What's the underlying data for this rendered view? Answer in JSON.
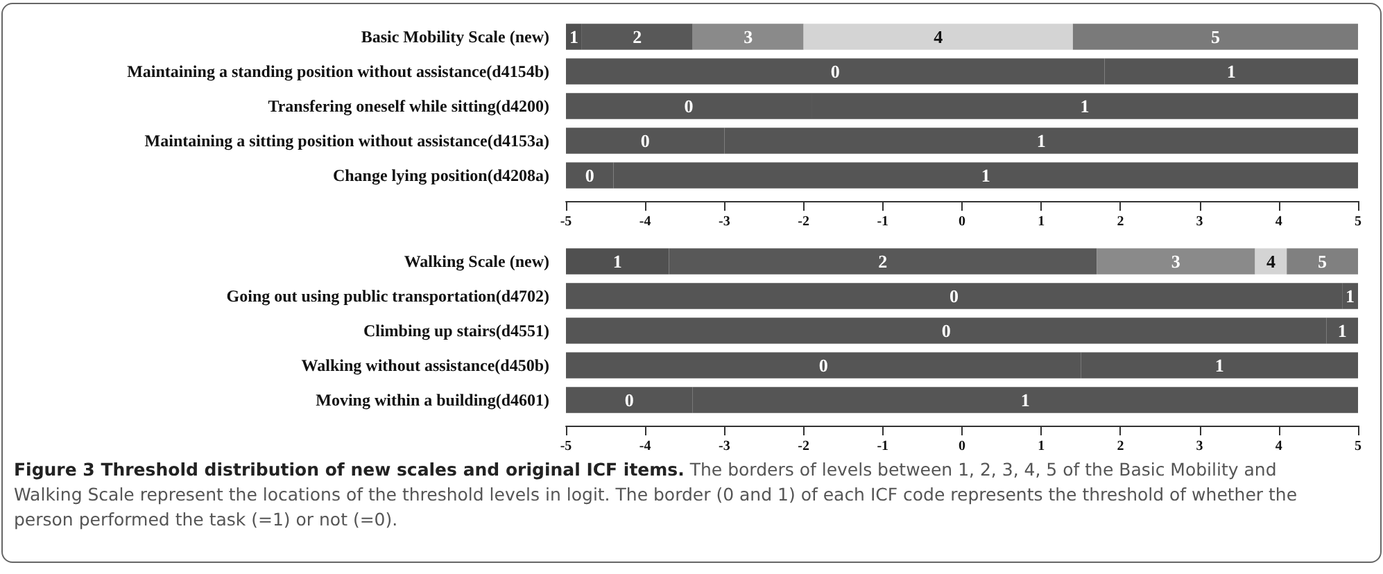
{
  "chart_data": [
    {
      "type": "bar",
      "orientation": "horizontal",
      "categories": [
        "Basic Mobility Scale (new)",
        "Maintaining a standing position without assistance(d4154b)",
        "Transfering oneself while sitting(d4200)",
        "Maintaining a sitting position without assistance(d4153a)",
        "Change lying position(d4208a)"
      ],
      "series": [
        {
          "base": [
            -5,
            -5,
            -5,
            -5,
            -5
          ],
          "values": [
            0.2,
            6.8,
            3.1,
            2.0,
            0.6
          ],
          "colors": [
            "#505050",
            "#555555",
            "#555555",
            "#555555",
            "#555555"
          ]
        },
        {
          "base": [
            -4.8,
            1.8,
            -1.9,
            -3.0,
            -4.4
          ],
          "values": [
            1.4,
            3.2,
            6.9,
            8.0,
            9.4
          ],
          "colors": [
            "#585858",
            "#555555",
            "#555555",
            "#555555",
            "#555555"
          ]
        },
        {
          "base": [
            -3.4,
            null,
            null,
            null,
            null
          ],
          "values": [
            1.4,
            null,
            null,
            null,
            null
          ],
          "colors": [
            "#8a8a8a",
            null,
            null,
            null,
            null
          ]
        },
        {
          "base": [
            -2.0,
            null,
            null,
            null,
            null
          ],
          "values": [
            3.4,
            null,
            null,
            null,
            null
          ],
          "colors": [
            "#d4d4d4",
            null,
            null,
            null,
            null
          ]
        },
        {
          "base": [
            1.4,
            null,
            null,
            null,
            null
          ],
          "values": [
            3.6,
            null,
            null,
            null,
            null
          ],
          "colors": [
            "#7a7a7a",
            null,
            null,
            null,
            null
          ]
        }
      ],
      "xlim": [
        -5,
        5
      ],
      "xticks": [
        -5,
        -4,
        -3,
        -2,
        -1,
        0,
        1,
        2,
        3,
        4,
        5
      ],
      "annotations": [
        {
          "text": "1",
          "x": -4.9,
          "y": "Basic Mobility Scale (new)"
        },
        {
          "text": "2",
          "x": -4.1,
          "y": "Basic Mobility Scale (new)"
        },
        {
          "text": "3",
          "x": -2.7,
          "y": "Basic Mobility Scale (new)"
        },
        {
          "text": "4",
          "x": -0.3,
          "y": "Basic Mobility Scale (new)"
        },
        {
          "text": "5",
          "x": 3.2,
          "y": "Basic Mobility Scale (new)"
        },
        {
          "text": "0",
          "x": -1.6,
          "y": "Maintaining a standing position without assistance(d4154b)"
        },
        {
          "text": "1",
          "x": 3.4,
          "y": "Maintaining a standing position without assistance(d4154b)"
        },
        {
          "text": "0",
          "x": -3.45,
          "y": "Transfering oneself while sitting(d4200)"
        },
        {
          "text": "1",
          "x": 1.55,
          "y": "Transfering oneself while sitting(d4200)"
        },
        {
          "text": "0",
          "x": -4.0,
          "y": "Maintaining a sitting position without assistance(d4153a)"
        },
        {
          "text": "1",
          "x": 1.0,
          "y": "Maintaining a sitting position without assistance(d4153a)"
        },
        {
          "text": "0",
          "x": -4.7,
          "y": "Change lying position(d4208a)"
        },
        {
          "text": "1",
          "x": 0.3,
          "y": "Change lying position(d4208a)"
        }
      ]
    },
    {
      "type": "bar",
      "orientation": "horizontal",
      "categories": [
        "Walking Scale (new)",
        "Going out using public transportation(d4702)",
        "Climbing up stairs(d4551)",
        "Walking without assistance(d450b)",
        "Moving within a building(d4601)"
      ],
      "series": [
        {
          "base": [
            -5,
            -5,
            -5,
            -5,
            -5
          ],
          "values": [
            1.3,
            9.8,
            9.6,
            6.5,
            1.6
          ],
          "colors": [
            "#505050",
            "#555555",
            "#555555",
            "#555555",
            "#555555"
          ]
        },
        {
          "base": [
            -3.7,
            4.8,
            4.6,
            1.5,
            -3.4
          ],
          "values": [
            5.4,
            0.2,
            0.4,
            3.5,
            8.4
          ],
          "colors": [
            "#585858",
            "#555555",
            "#555555",
            "#555555",
            "#555555"
          ]
        },
        {
          "base": [
            1.7,
            null,
            null,
            null,
            null
          ],
          "values": [
            2.0,
            null,
            null,
            null,
            null
          ],
          "colors": [
            "#8a8a8a",
            null,
            null,
            null,
            null
          ]
        },
        {
          "base": [
            3.7,
            null,
            null,
            null,
            null
          ],
          "values": [
            0.4,
            null,
            null,
            null,
            null
          ],
          "colors": [
            "#d4d4d4",
            null,
            null,
            null,
            null
          ]
        },
        {
          "base": [
            4.1,
            null,
            null,
            null,
            null
          ],
          "values": [
            0.9,
            null,
            null,
            null,
            null
          ],
          "colors": [
            "#808080",
            null,
            null,
            null,
            null
          ]
        }
      ],
      "xlim": [
        -5,
        5
      ],
      "xticks": [
        -5,
        -4,
        -3,
        -2,
        -1,
        0,
        1,
        2,
        3,
        4,
        5
      ],
      "annotations": [
        {
          "text": "1",
          "x": -4.35,
          "y": "Walking Scale (new)"
        },
        {
          "text": "2",
          "x": -1.0,
          "y": "Walking Scale (new)"
        },
        {
          "text": "3",
          "x": 2.7,
          "y": "Walking Scale (new)"
        },
        {
          "text": "4",
          "x": 3.9,
          "y": "Walking Scale (new)"
        },
        {
          "text": "5",
          "x": 4.55,
          "y": "Walking Scale (new)"
        },
        {
          "text": "0",
          "x": -0.1,
          "y": "Going out using public transportation(d4702)"
        },
        {
          "text": "1",
          "x": 4.9,
          "y": "Going out using public transportation(d4702)"
        },
        {
          "text": "0",
          "x": -0.2,
          "y": "Climbing up stairs(d4551)"
        },
        {
          "text": "1",
          "x": 4.8,
          "y": "Climbing up stairs(d4551)"
        },
        {
          "text": "0",
          "x": -1.75,
          "y": "Walking without assistance(d450b)"
        },
        {
          "text": "1",
          "x": 3.25,
          "y": "Walking without assistance(d450b)"
        },
        {
          "text": "0",
          "x": -4.2,
          "y": "Moving within a building(d4601)"
        },
        {
          "text": "1",
          "x": 0.8,
          "y": "Moving within a building(d4601)"
        },
        "Figure 3 Threshold distribution of new scales and original ICF items.",
        "The borders of levels between 1, 2, 3, 4, 5 of the Basic Mobility and Walking Scale represent the locations of the threshold levels in logit. The border (0 and 1) of each ICF code represents the threshold of whether the person performed the task (=1) or not (=0)."
      ]
    }
  ]
}
